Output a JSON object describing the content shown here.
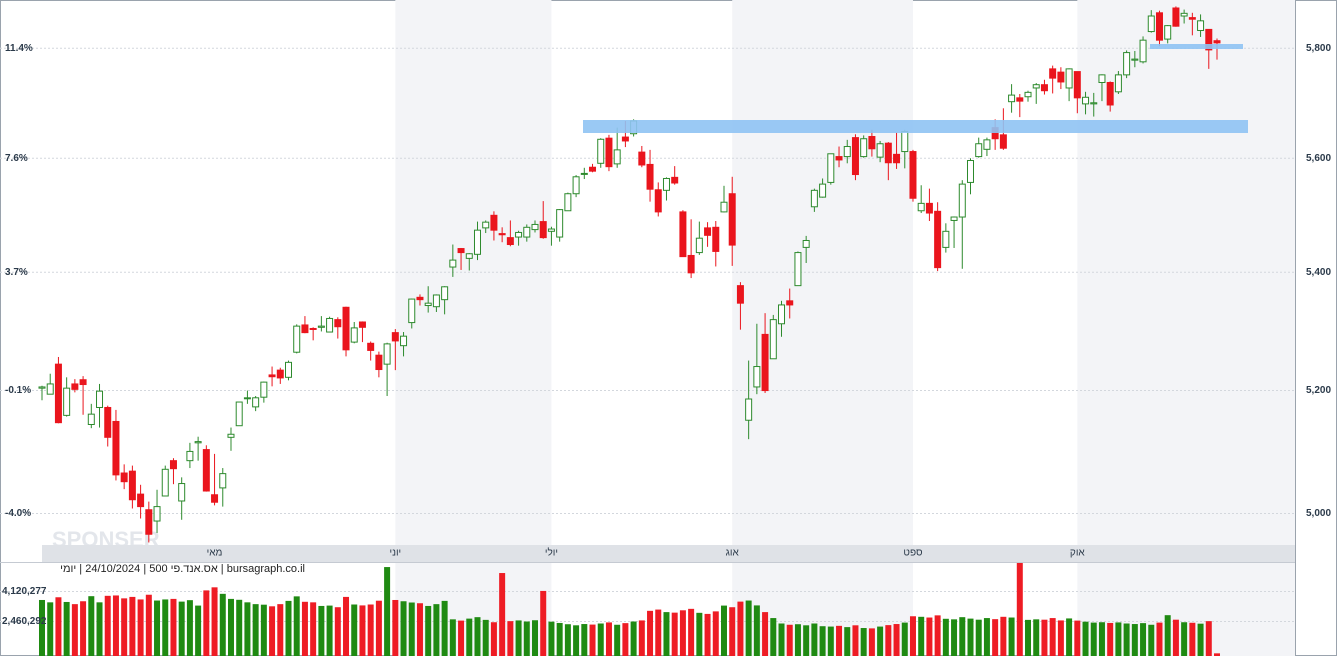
{
  "chart_data": {
    "type": "candlestick",
    "watermark": "SPONSER",
    "caption": "bursagraph.co.il | אס.אנד.פי 500 | 24/10/2024 | יומי",
    "log": true,
    "grid": true,
    "up_color": "#2d8a2d",
    "down_color": "#ea151d",
    "ylim": [
      4950,
      5890
    ],
    "yticks": [
      {
        "value": 5000,
        "label": "5,000"
      },
      {
        "value": 5200,
        "label": "5,200"
      },
      {
        "value": 5400,
        "label": "5,400"
      },
      {
        "value": 5600,
        "label": "5,600"
      },
      {
        "value": 5800,
        "label": "5,800"
      }
    ],
    "left_tick_labels": [
      "-4.0%",
      "-0.1%",
      "3.7%",
      "7.6%",
      "11.4%"
    ],
    "categories": [
      null,
      null,
      null,
      null,
      null,
      null,
      null,
      null,
      null,
      null,
      null,
      null,
      null,
      null,
      null,
      null,
      null,
      null,
      null,
      null,
      null,
      "מאי",
      null,
      null,
      null,
      null,
      null,
      null,
      null,
      null,
      null,
      null,
      null,
      null,
      null,
      null,
      null,
      null,
      null,
      null,
      null,
      null,
      null,
      "יוני",
      null,
      null,
      null,
      null,
      null,
      null,
      null,
      null,
      null,
      null,
      null,
      null,
      null,
      null,
      null,
      null,
      null,
      null,
      "יולי",
      null,
      null,
      null,
      null,
      null,
      null,
      null,
      null,
      null,
      null,
      null,
      null,
      null,
      null,
      null,
      null,
      null,
      null,
      null,
      null,
      null,
      "אוג",
      null,
      null,
      null,
      null,
      null,
      null,
      null,
      null,
      null,
      null,
      null,
      null,
      null,
      null,
      null,
      null,
      null,
      null,
      null,
      null,
      null,
      "ספט",
      null,
      null,
      null,
      null,
      null,
      null,
      null,
      null,
      null,
      null,
      null,
      null,
      null,
      null,
      null,
      null,
      null,
      null,
      null,
      "אוק",
      null,
      null,
      null,
      null,
      null,
      null,
      null,
      null,
      null,
      null,
      null,
      null,
      null,
      null,
      null,
      null,
      null
    ],
    "open": [
      5204,
      5194,
      5244,
      5159,
      5211,
      5218,
      5144,
      5172,
      5172,
      5149,
      5065,
      5068,
      5031,
      5006,
      4988,
      5028,
      5085,
      5020,
      5085,
      5114,
      5103,
      5030,
      5041,
      5123,
      5142,
      5188,
      5173,
      5189,
      5226,
      5234,
      5222,
      5264,
      5310,
      5304,
      5306,
      5298,
      5319,
      5340,
      5281,
      5315,
      5279,
      5259,
      5244,
      5297,
      5275,
      5314,
      5357,
      5343,
      5341,
      5353,
      5409,
      5441,
      5424,
      5431,
      5477,
      5499,
      5467,
      5460,
      5461,
      5461,
      5474,
      5488,
      5471,
      5461,
      5507,
      5537,
      5572,
      5584,
      5591,
      5636,
      5590,
      5638,
      5644,
      5611,
      5589,
      5544,
      5543,
      5566,
      5505,
      5429,
      5434,
      5477,
      5478,
      5505,
      5537,
      5377,
      5151,
      5206,
      5294,
      5253,
      5312,
      5351,
      5377,
      5443,
      5514,
      5531,
      5557,
      5603,
      5603,
      5637,
      5603,
      5639,
      5602,
      5627,
      5607,
      5612,
      5612,
      5507,
      5520,
      5506,
      5443,
      5490,
      5496,
      5557,
      5603,
      5616,
      5655,
      5642,
      5702,
      5709,
      5711,
      5727,
      5733,
      5762,
      5756,
      5727,
      5757,
      5698,
      5698,
      5737,
      5737,
      5720,
      5751,
      5778,
      5775,
      5831,
      5866,
      5817,
      5875,
      5860,
      5857,
      5833,
      5835,
      5814
    ],
    "high": [
      5208,
      5228,
      5256,
      5222,
      5219,
      5224,
      5178,
      5211,
      5175,
      5168,
      5079,
      5077,
      5046,
      5019,
      5038,
      5077,
      5089,
      5058,
      5114,
      5124,
      5110,
      5096,
      5073,
      5139,
      5181,
      5200,
      5191,
      5215,
      5240,
      5238,
      5250,
      5311,
      5325,
      5306,
      5325,
      5324,
      5323,
      5341,
      5315,
      5316,
      5282,
      5265,
      5280,
      5303,
      5298,
      5355,
      5362,
      5376,
      5362,
      5376,
      5448,
      5442,
      5433,
      5488,
      5490,
      5506,
      5478,
      5490,
      5472,
      5483,
      5490,
      5524,
      5479,
      5510,
      5539,
      5570,
      5583,
      5590,
      5636,
      5642,
      5655,
      5667,
      5670,
      5622,
      5615,
      5557,
      5566,
      5586,
      5508,
      5492,
      5488,
      5487,
      5489,
      5551,
      5567,
      5383,
      5250,
      5312,
      5330,
      5327,
      5351,
      5372,
      5436,
      5463,
      5546,
      5564,
      5608,
      5621,
      5633,
      5643,
      5641,
      5651,
      5631,
      5629,
      5646,
      5651,
      5615,
      5552,
      5546,
      5522,
      5485,
      5497,
      5561,
      5600,
      5637,
      5637,
      5670,
      5690,
      5734,
      5716,
      5722,
      5736,
      5742,
      5768,
      5765,
      5763,
      5757,
      5720,
      5718,
      5752,
      5739,
      5758,
      5796,
      5795,
      5822,
      5871,
      5870,
      5843,
      5878,
      5872,
      5866,
      5863,
      5835,
      5818
    ],
    "low": [
      5184,
      5194,
      5146,
      5157,
      5197,
      5160,
      5138,
      5139,
      5108,
      5053,
      5039,
      5008,
      4992,
      4954,
      4969,
      5028,
      5047,
      4990,
      5073,
      5085,
      5035,
      5013,
      5011,
      5101,
      5142,
      5178,
      5166,
      5180,
      5207,
      5211,
      5217,
      5262,
      5296,
      5284,
      5299,
      5298,
      5287,
      5257,
      5279,
      5281,
      5250,
      5222,
      5191,
      5234,
      5257,
      5304,
      5343,
      5331,
      5332,
      5328,
      5392,
      5404,
      5403,
      5421,
      5468,
      5455,
      5452,
      5445,
      5446,
      5453,
      5469,
      5458,
      5446,
      5453,
      5507,
      5531,
      5563,
      5575,
      5583,
      5577,
      5583,
      5620,
      5639,
      5584,
      5523,
      5497,
      5525,
      5553,
      5427,
      5390,
      5430,
      5444,
      5410,
      5504,
      5411,
      5302,
      5120,
      5194,
      5196,
      5253,
      5290,
      5321,
      5377,
      5416,
      5505,
      5530,
      5553,
      5584,
      5591,
      5561,
      5601,
      5603,
      5593,
      5561,
      5581,
      5582,
      5523,
      5503,
      5489,
      5402,
      5434,
      5442,
      5406,
      5536,
      5601,
      5604,
      5615,
      5615,
      5682,
      5674,
      5702,
      5698,
      5715,
      5717,
      5725,
      5703,
      5681,
      5679,
      5675,
      5703,
      5684,
      5716,
      5745,
      5765,
      5772,
      5829,
      5804,
      5809,
      5840,
      5846,
      5824,
      5821,
      5762,
      5779
    ],
    "close": [
      5206,
      5211,
      5147,
      5204,
      5202,
      5210,
      5161,
      5199,
      5123,
      5062,
      5051,
      5022,
      5011,
      4967,
      5011,
      5071,
      5072,
      5048,
      5100,
      5116,
      5036,
      5018,
      5064,
      5128,
      5181,
      5188,
      5188,
      5214,
      5223,
      5221,
      5247,
      5308,
      5297,
      5303,
      5308,
      5321,
      5307,
      5268,
      5305,
      5306,
      5267,
      5235,
      5278,
      5283,
      5291,
      5354,
      5353,
      5347,
      5361,
      5375,
      5421,
      5434,
      5432,
      5473,
      5487,
      5473,
      5465,
      5448,
      5469,
      5478,
      5483,
      5460,
      5475,
      5509,
      5537,
      5567,
      5573,
      5577,
      5634,
      5585,
      5615,
      5631,
      5667,
      5588,
      5545,
      5505,
      5564,
      5556,
      5427,
      5399,
      5459,
      5464,
      5436,
      5522,
      5447,
      5347,
      5186,
      5240,
      5200,
      5319,
      5344,
      5344,
      5434,
      5455,
      5543,
      5554,
      5608,
      5597,
      5621,
      5571,
      5635,
      5617,
      5626,
      5592,
      5592,
      5648,
      5529,
      5520,
      5503,
      5408,
      5471,
      5496,
      5554,
      5596,
      5626,
      5633,
      5635,
      5618,
      5714,
      5703,
      5719,
      5733,
      5722,
      5745,
      5738,
      5762,
      5709,
      5710,
      5700,
      5751,
      5696,
      5751,
      5792,
      5780,
      5815,
      5860,
      5815,
      5842,
      5841,
      5865,
      5854,
      5851,
      5797,
      5810
    ],
    "volume": {
      "vlim": [
        0,
        5750000
      ],
      "ticks": [
        {
          "value": 4120277,
          "label": "4,120,277"
        },
        {
          "value": 2460292,
          "label": "2,460,292"
        }
      ],
      "values": [
        3650000,
        3520000,
        3800000,
        3540000,
        3420000,
        3580000,
        3860000,
        3520000,
        3880000,
        3900000,
        3740000,
        3820000,
        3680000,
        3940000,
        3620000,
        3680000,
        3710000,
        3560000,
        3640000,
        3340000,
        4180000,
        4350000,
        3990000,
        3710000,
        3660000,
        3520000,
        3420000,
        3390000,
        3300000,
        3420000,
        3600000,
        3850000,
        3550000,
        3520000,
        3320000,
        3340000,
        3250000,
        3820000,
        3400000,
        3350000,
        3400000,
        3610000,
        5470000,
        3650000,
        3580000,
        3510000,
        3470000,
        3320000,
        3420000,
        3600000,
        2580000,
        2510000,
        2620000,
        2700000,
        2550000,
        2420000,
        5140000,
        2480000,
        2520000,
        2460000,
        2530000,
        4150000,
        2450000,
        2380000,
        2310000,
        2250000,
        2320000,
        2290000,
        2350000,
        2410000,
        2280000,
        2370000,
        2460000,
        2520000,
        3050000,
        3120000,
        2980000,
        2950000,
        3080000,
        3160000,
        2940000,
        2880000,
        3020000,
        3340000,
        3250000,
        3560000,
        3620000,
        3350000,
        2980000,
        2650000,
        2350000,
        2280000,
        2310000,
        2250000,
        2350000,
        2200000,
        2180000,
        2220000,
        2150000,
        2250000,
        2100000,
        2080000,
        2180000,
        2260000,
        2320000,
        2400000,
        2750000,
        2720000,
        2680000,
        2800000,
        2610000,
        2580000,
        2700000,
        2620000,
        2560000,
        2650000,
        2590000,
        2720000,
        2680000,
        5750000,
        2550000,
        2580000,
        2560000,
        2650000,
        2520000,
        2630000,
        2510000,
        2450000,
        2400000,
        2420000,
        2380000,
        2410000,
        2350000,
        2320000,
        2370000,
        2280000,
        2400000,
        2810000,
        2560000,
        2420000,
        2390000,
        2340000,
        2480000,
        700000
      ]
    }
  }
}
